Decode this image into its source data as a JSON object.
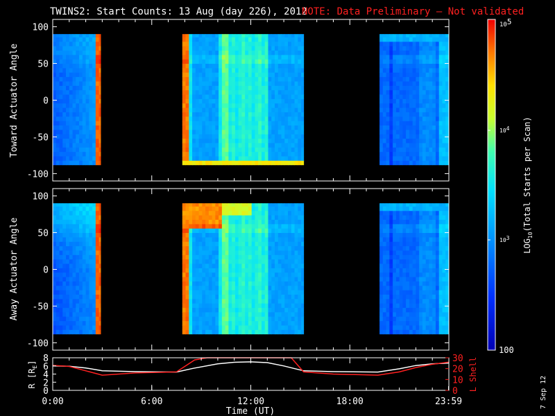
{
  "title": {
    "main": "TWINS2: Start Counts: 13 Aug (day 226), 2012",
    "note": "NOTE: Data Preliminary – Not validated",
    "note_color": "#ff2020"
  },
  "date_stamp": "7 Sep 12",
  "chart_data": [
    {
      "type": "heatmap",
      "name": "toward",
      "ylabel": "Toward Actuator Angle",
      "ylim": [
        -110,
        110
      ],
      "yticks": [
        100,
        50,
        0,
        -50,
        -100
      ],
      "xlim": [
        0,
        24
      ],
      "angle_range": [
        -88,
        90
      ],
      "data_intervals": [
        [
          0.0,
          2.9
        ],
        [
          7.85,
          15.2
        ],
        [
          19.8,
          24.0
        ]
      ],
      "scale": "log",
      "zlim": [
        100,
        100000
      ]
    },
    {
      "type": "heatmap",
      "name": "away",
      "ylabel": "Away Actuator Angle",
      "ylim": [
        -110,
        110
      ],
      "yticks": [
        100,
        50,
        0,
        -50,
        -100
      ],
      "xlim": [
        0,
        24
      ],
      "angle_range": [
        -88,
        90
      ],
      "data_intervals": [
        [
          0.0,
          2.9
        ],
        [
          7.85,
          15.2
        ],
        [
          19.8,
          24.0
        ]
      ],
      "scale": "log",
      "zlim": [
        100,
        100000
      ]
    },
    {
      "type": "line",
      "name": "orbit",
      "ylabel_left": "R [R",
      "ylabel_left_sub": "E",
      "ylabel_left_end": "]",
      "ylabel_right": "L Shell",
      "right_color": "#ff2020",
      "ylim_left": [
        0,
        8
      ],
      "yticks_left": [
        8,
        6,
        4,
        2,
        0
      ],
      "ylim_right": [
        0,
        30
      ],
      "yticks_right": [
        30,
        20,
        10,
        0
      ],
      "xlabel": "Time (UT)",
      "xticks": [
        {
          "t": 0,
          "label": "0:00"
        },
        {
          "t": 6,
          "label": "6:00"
        },
        {
          "t": 12,
          "label": "12:00"
        },
        {
          "t": 18,
          "label": "18:00"
        },
        {
          "t": 23.98,
          "label": "23:59"
        }
      ],
      "series": [
        {
          "color": "#ffffff",
          "x": [
            0,
            1,
            2,
            3,
            5,
            7.5,
            8.5,
            10,
            11,
            12,
            13,
            14,
            15.2,
            17,
            19.7,
            21,
            22,
            23,
            24
          ],
          "y": [
            6.0,
            5.9,
            5.5,
            4.8,
            4.6,
            4.5,
            5.4,
            6.5,
            6.9,
            7.0,
            6.8,
            6.0,
            4.8,
            4.6,
            4.5,
            5.3,
            6.1,
            6.5,
            6.7
          ]
        },
        {
          "color": "#ff2020",
          "x": [
            0,
            1,
            2,
            3,
            5,
            7.5,
            8.6,
            9.35,
            14.45,
            15.2,
            17,
            19.7,
            21,
            22,
            23,
            24
          ],
          "y": [
            23,
            22,
            18,
            14,
            16,
            17,
            28,
            30,
            30,
            17,
            15,
            14,
            17,
            21,
            24,
            26
          ]
        }
      ]
    }
  ],
  "colorbar": {
    "label_main": "LOG",
    "label_sub": "10",
    "label_rest": "(Total Starts per Scan)",
    "tick_top_base": "10",
    "tick_top_exp": "5",
    "tick_mid_base": "10",
    "tick_mid_exp": "4",
    "tick_low_base": "10",
    "tick_low_exp": "3",
    "tick_bottom": "100"
  }
}
